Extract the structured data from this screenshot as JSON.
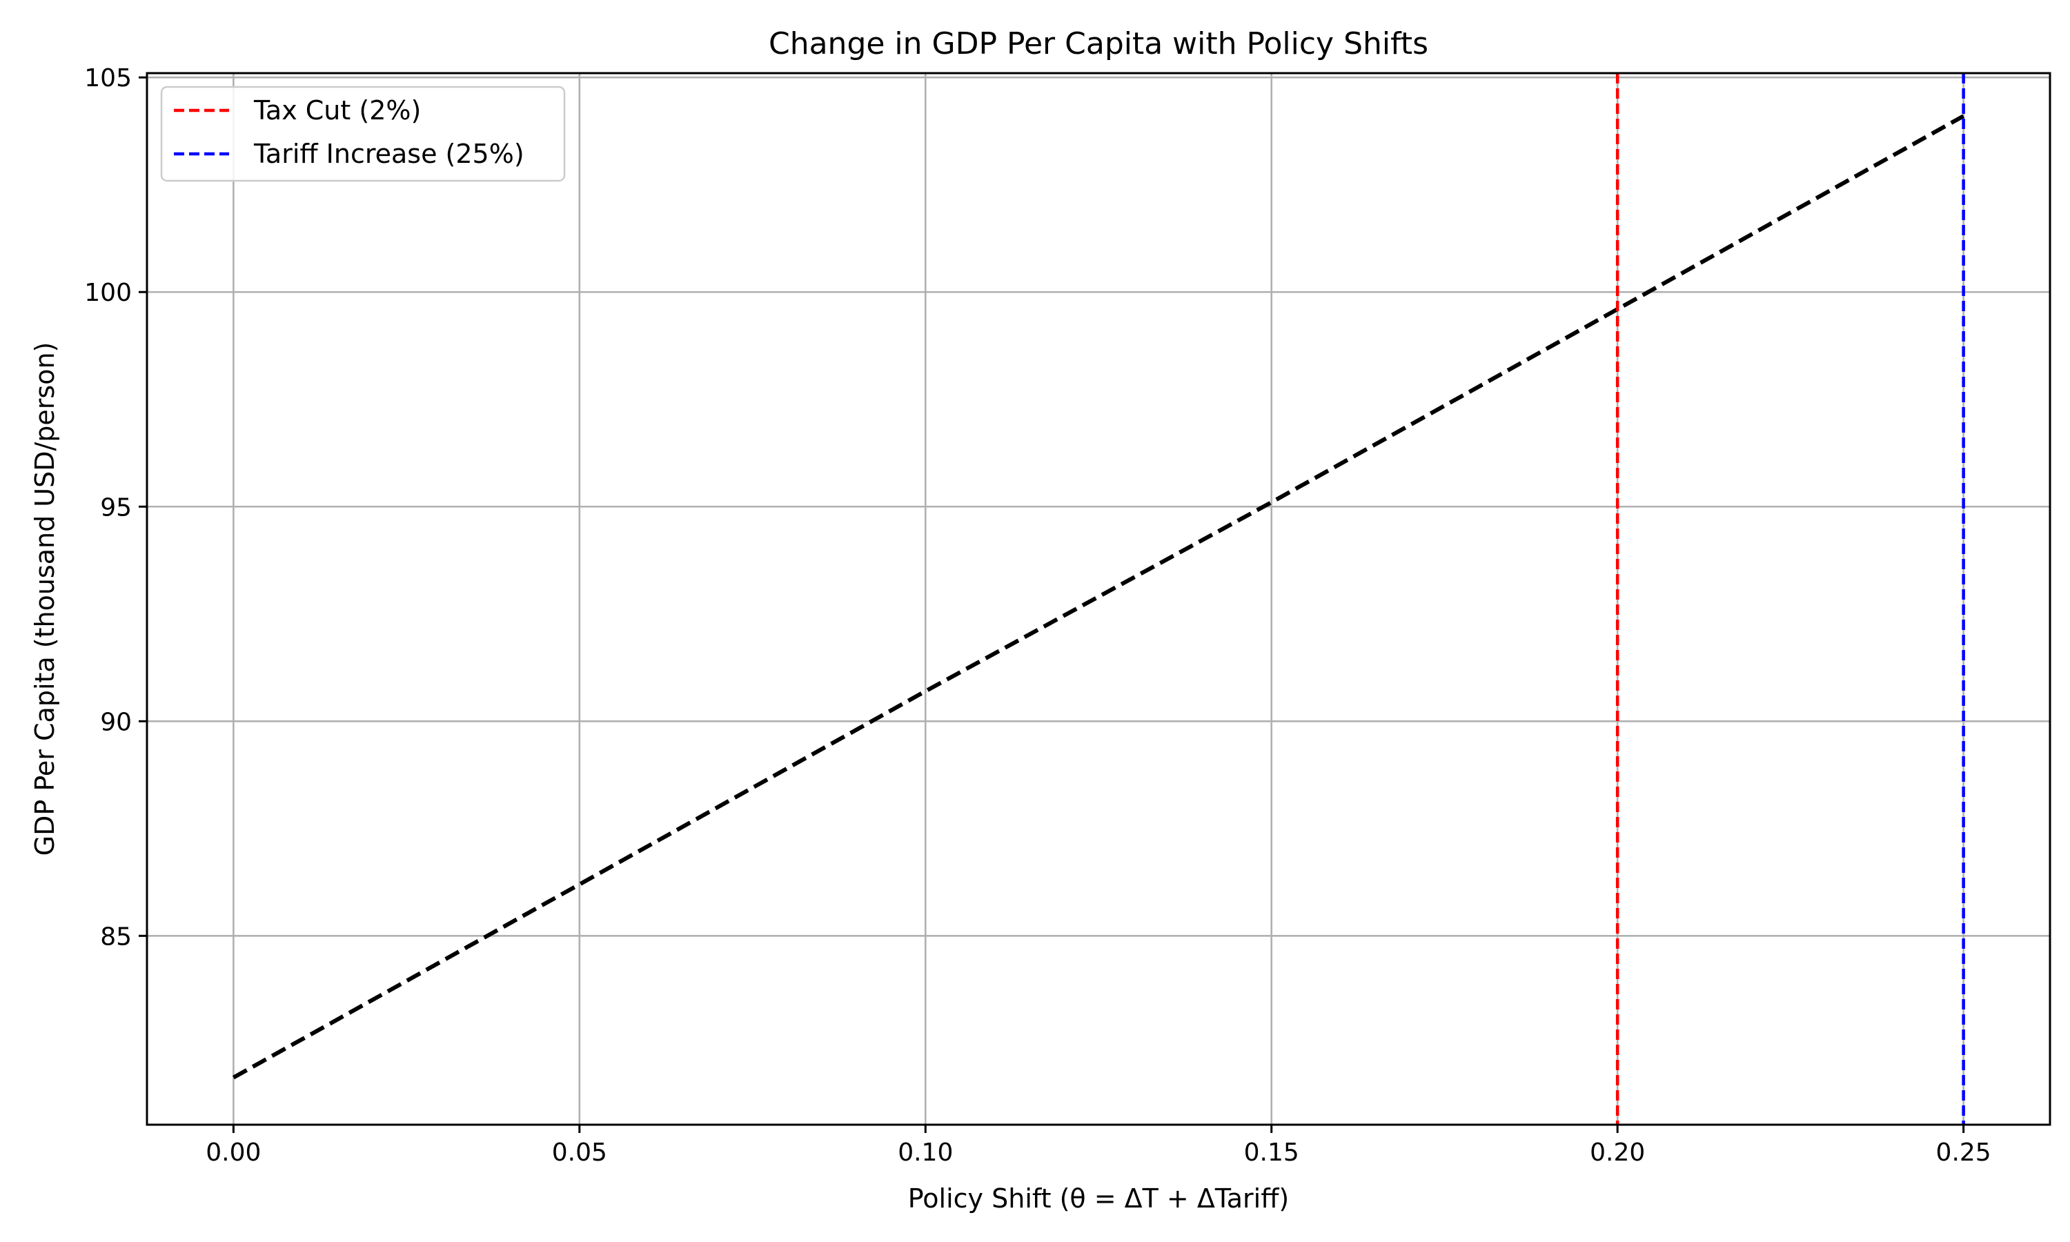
{
  "chart_data": {
    "type": "line",
    "title": "Change in GDP Per Capita with Policy Shifts",
    "xlabel": "Policy Shift (θ = ΔT + ΔTariff)",
    "ylabel": "GDP Per Capita (thousand USD/person)",
    "xlim": [
      -0.0125,
      0.2625
    ],
    "ylim": [
      80.6,
      105.1
    ],
    "xticks": [
      0.0,
      0.05,
      0.1,
      0.15,
      0.2,
      0.25
    ],
    "xtick_labels": [
      "0.00",
      "0.05",
      "0.10",
      "0.15",
      "0.20",
      "0.25"
    ],
    "yticks": [
      85,
      90,
      95,
      100,
      105
    ],
    "ytick_labels": [
      "85",
      "90",
      "95",
      "100",
      "105"
    ],
    "grid": true,
    "legend_position": "top-left",
    "series": [
      {
        "color": "#000000",
        "style": "dashed",
        "x": [
          0.0,
          0.05,
          0.1,
          0.15,
          0.2,
          0.25
        ],
        "y": [
          81.7,
          86.2,
          90.7,
          95.1,
          99.6,
          104.1
        ]
      }
    ],
    "vlines": [
      {
        "name": "Tax Cut (2%)",
        "x": 0.2,
        "color": "#ff0000",
        "style": "dashed"
      },
      {
        "name": "Tariff Increase (25%)",
        "x": 0.25,
        "color": "#0000ff",
        "style": "dashed"
      }
    ]
  }
}
